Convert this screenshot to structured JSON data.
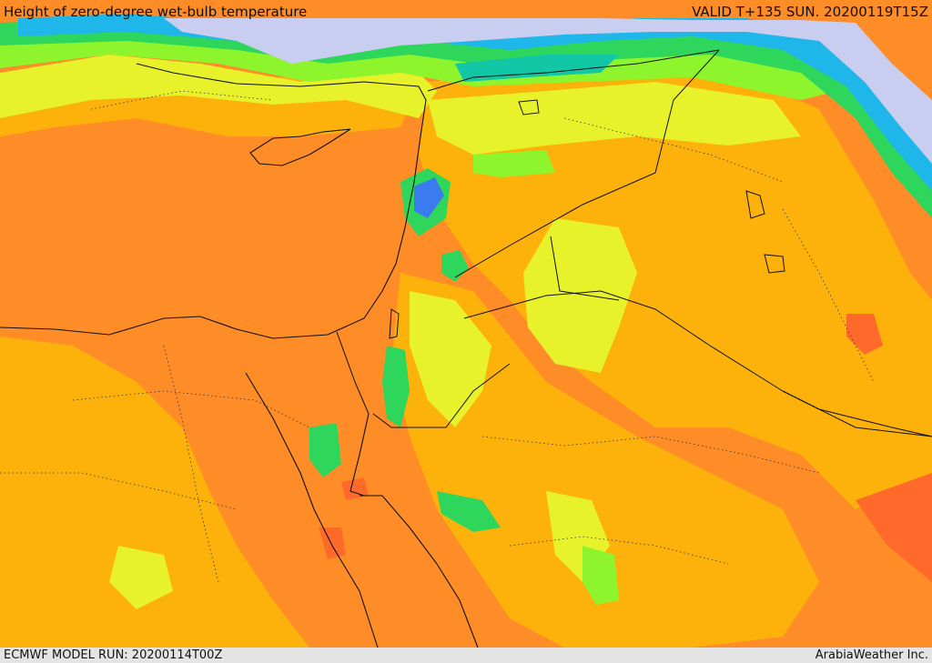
{
  "header": {
    "title": "Height of zero-degree wet-bulb temperature",
    "valid_time": "VALID T+135 SUN. 20200119T15Z"
  },
  "footer": {
    "model_run": "ECMWF MODEL RUN: 20200114T00Z",
    "credit": "ArabiaWeather Inc."
  },
  "map": {
    "colors": {
      "sea_red": "#ff6a2a",
      "deep_orange": "#fe8c27",
      "orange": "#fdb20b",
      "yellow": "#e8f22a",
      "light_green": "#8ef52c",
      "green": "#2ed75b",
      "teal": "#12c7a6",
      "cyan": "#1fb6ea",
      "blue": "#3b7bf0",
      "light_blue": "#9fc8f6",
      "lavender": "#c9cdf0",
      "border": "#111111"
    }
  }
}
